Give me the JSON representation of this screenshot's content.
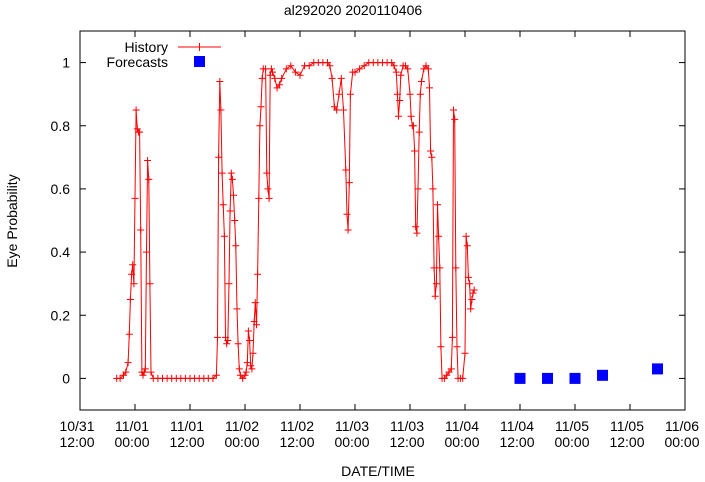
{
  "chart_data": {
    "type": "line",
    "title": "al292020 2020110406",
    "xlabel": "DATE/TIME",
    "ylabel": "Eye Probability",
    "xlim": [
      "2020-10-31T12:00",
      "2020-11-06T00:00"
    ],
    "ylim": [
      -0.1,
      1.1
    ],
    "x_ticks": [
      {
        "t": "2020-10-31T12:00",
        "l1": "10/31",
        "l2": "12:00"
      },
      {
        "t": "2020-11-01T00:00",
        "l1": "11/01",
        "l2": "00:00"
      },
      {
        "t": "2020-11-01T12:00",
        "l1": "11/01",
        "l2": "12:00"
      },
      {
        "t": "2020-11-02T00:00",
        "l1": "11/02",
        "l2": "00:00"
      },
      {
        "t": "2020-11-02T12:00",
        "l1": "11/02",
        "l2": "12:00"
      },
      {
        "t": "2020-11-03T00:00",
        "l1": "11/03",
        "l2": "00:00"
      },
      {
        "t": "2020-11-03T12:00",
        "l1": "11/03",
        "l2": "12:00"
      },
      {
        "t": "2020-11-04T00:00",
        "l1": "11/04",
        "l2": "00:00"
      },
      {
        "t": "2020-11-04T12:00",
        "l1": "11/04",
        "l2": "12:00"
      },
      {
        "t": "2020-11-05T00:00",
        "l1": "11/05",
        "l2": "00:00"
      },
      {
        "t": "2020-11-05T12:00",
        "l1": "11/05",
        "l2": "12:00"
      },
      {
        "t": "2020-11-06T00:00",
        "l1": "11/06",
        "l2": "00:00"
      }
    ],
    "y_ticks": [
      {
        "v": 0,
        "l": "0"
      },
      {
        "v": 0.2,
        "l": "0.2"
      },
      {
        "v": 0.4,
        "l": "0.4"
      },
      {
        "v": 0.6,
        "l": "0.6"
      },
      {
        "v": 0.8,
        "l": "0.8"
      },
      {
        "v": 1,
        "l": "1"
      }
    ],
    "legend_position": "top-left",
    "series": [
      {
        "name": "History",
        "color": "#ff0000",
        "style": "line-with-plus-markers",
        "points": [
          [
            "2020-10-31T20:00",
            0.0
          ],
          [
            "2020-10-31T20:45",
            0.0
          ],
          [
            "2020-10-31T21:30",
            0.01
          ],
          [
            "2020-10-31T22:00",
            0.02
          ],
          [
            "2020-10-31T22:30",
            0.05
          ],
          [
            "2020-10-31T22:45",
            0.14
          ],
          [
            "2020-10-31T23:00",
            0.25
          ],
          [
            "2020-10-31T23:15",
            0.33
          ],
          [
            "2020-10-31T23:30",
            0.36
          ],
          [
            "2020-10-31T23:45",
            0.3
          ],
          [
            "2020-11-01T00:00",
            0.57
          ],
          [
            "2020-11-01T00:15",
            0.85
          ],
          [
            "2020-11-01T00:30",
            0.79
          ],
          [
            "2020-11-01T00:45",
            0.78
          ],
          [
            "2020-11-01T01:00",
            0.78
          ],
          [
            "2020-11-01T01:15",
            0.47
          ],
          [
            "2020-11-01T01:30",
            0.02
          ],
          [
            "2020-11-01T01:45",
            0.01
          ],
          [
            "2020-11-01T02:00",
            0.02
          ],
          [
            "2020-11-01T02:15",
            0.03
          ],
          [
            "2020-11-01T02:30",
            0.4
          ],
          [
            "2020-11-01T02:45",
            0.69
          ],
          [
            "2020-11-01T03:00",
            0.63
          ],
          [
            "2020-11-01T03:15",
            0.3
          ],
          [
            "2020-11-01T03:30",
            0.02
          ],
          [
            "2020-11-01T04:00",
            0.0
          ],
          [
            "2020-11-01T05:00",
            0.0
          ],
          [
            "2020-11-01T06:00",
            0.0
          ],
          [
            "2020-11-01T07:00",
            0.0
          ],
          [
            "2020-11-01T08:00",
            0.0
          ],
          [
            "2020-11-01T09:00",
            0.0
          ],
          [
            "2020-11-01T10:00",
            0.0
          ],
          [
            "2020-11-01T11:00",
            0.0
          ],
          [
            "2020-11-01T12:00",
            0.0
          ],
          [
            "2020-11-01T13:00",
            0.0
          ],
          [
            "2020-11-01T14:00",
            0.0
          ],
          [
            "2020-11-01T15:00",
            0.0
          ],
          [
            "2020-11-01T16:00",
            0.0
          ],
          [
            "2020-11-01T17:00",
            0.0
          ],
          [
            "2020-11-01T17:45",
            0.01
          ],
          [
            "2020-11-01T18:00",
            0.13
          ],
          [
            "2020-11-01T18:15",
            0.7
          ],
          [
            "2020-11-01T18:30",
            0.94
          ],
          [
            "2020-11-01T18:45",
            0.85
          ],
          [
            "2020-11-01T19:00",
            0.65
          ],
          [
            "2020-11-01T19:15",
            0.55
          ],
          [
            "2020-11-01T19:30",
            0.45
          ],
          [
            "2020-11-01T19:45",
            0.13
          ],
          [
            "2020-11-01T20:00",
            0.11
          ],
          [
            "2020-11-01T20:15",
            0.12
          ],
          [
            "2020-11-01T20:30",
            0.3
          ],
          [
            "2020-11-01T20:45",
            0.53
          ],
          [
            "2020-11-01T21:00",
            0.65
          ],
          [
            "2020-11-01T21:15",
            0.63
          ],
          [
            "2020-11-01T21:30",
            0.58
          ],
          [
            "2020-11-01T21:45",
            0.5
          ],
          [
            "2020-11-01T22:00",
            0.42
          ],
          [
            "2020-11-01T22:15",
            0.22
          ],
          [
            "2020-11-01T22:30",
            0.11
          ],
          [
            "2020-11-01T22:45",
            0.03
          ],
          [
            "2020-11-01T23:00",
            0.01
          ],
          [
            "2020-11-01T23:30",
            0.0
          ],
          [
            "2020-11-02T00:00",
            0.01
          ],
          [
            "2020-11-02T00:15",
            0.02
          ],
          [
            "2020-11-02T00:30",
            0.05
          ],
          [
            "2020-11-02T00:45",
            0.15
          ],
          [
            "2020-11-02T01:00",
            0.12
          ],
          [
            "2020-11-02T01:15",
            0.04
          ],
          [
            "2020-11-02T01:30",
            0.03
          ],
          [
            "2020-11-02T01:45",
            0.08
          ],
          [
            "2020-11-02T02:00",
            0.18
          ],
          [
            "2020-11-02T02:15",
            0.24
          ],
          [
            "2020-11-02T02:30",
            0.17
          ],
          [
            "2020-11-02T02:45",
            0.33
          ],
          [
            "2020-11-02T03:00",
            0.57
          ],
          [
            "2020-11-02T03:15",
            0.8
          ],
          [
            "2020-11-02T03:30",
            0.86
          ],
          [
            "2020-11-02T03:45",
            0.95
          ],
          [
            "2020-11-02T04:00",
            0.98
          ],
          [
            "2020-11-02T04:30",
            0.98
          ],
          [
            "2020-11-02T04:45",
            0.65
          ],
          [
            "2020-11-02T05:00",
            0.6
          ],
          [
            "2020-11-02T05:15",
            0.57
          ],
          [
            "2020-11-02T05:30",
            0.96
          ],
          [
            "2020-11-02T05:45",
            0.98
          ],
          [
            "2020-11-02T06:00",
            0.97
          ],
          [
            "2020-11-02T06:30",
            0.95
          ],
          [
            "2020-11-02T07:00",
            0.92
          ],
          [
            "2020-11-02T07:30",
            0.93
          ],
          [
            "2020-11-02T08:00",
            0.95
          ],
          [
            "2020-11-02T09:00",
            0.98
          ],
          [
            "2020-11-02T10:00",
            0.99
          ],
          [
            "2020-11-02T11:00",
            0.97
          ],
          [
            "2020-11-02T12:00",
            0.96
          ],
          [
            "2020-11-02T13:00",
            0.99
          ],
          [
            "2020-11-02T14:00",
            0.99
          ],
          [
            "2020-11-02T15:00",
            1.0
          ],
          [
            "2020-11-02T16:00",
            1.0
          ],
          [
            "2020-11-02T17:00",
            1.0
          ],
          [
            "2020-11-02T18:00",
            1.0
          ],
          [
            "2020-11-02T18:30",
            0.99
          ],
          [
            "2020-11-02T19:00",
            0.95
          ],
          [
            "2020-11-02T19:30",
            0.86
          ],
          [
            "2020-11-02T20:00",
            0.85
          ],
          [
            "2020-11-02T20:30",
            0.9
          ],
          [
            "2020-11-02T21:00",
            0.95
          ],
          [
            "2020-11-02T21:30",
            0.85
          ],
          [
            "2020-11-02T22:00",
            0.66
          ],
          [
            "2020-11-02T22:15",
            0.52
          ],
          [
            "2020-11-02T22:30",
            0.47
          ],
          [
            "2020-11-02T22:45",
            0.62
          ],
          [
            "2020-11-02T23:00",
            0.9
          ],
          [
            "2020-11-02T23:30",
            0.97
          ],
          [
            "2020-11-03T00:00",
            0.97
          ],
          [
            "2020-11-03T01:00",
            0.98
          ],
          [
            "2020-11-03T02:00",
            0.99
          ],
          [
            "2020-11-03T03:00",
            1.0
          ],
          [
            "2020-11-03T04:00",
            1.0
          ],
          [
            "2020-11-03T05:00",
            1.0
          ],
          [
            "2020-11-03T06:00",
            1.0
          ],
          [
            "2020-11-03T07:00",
            1.0
          ],
          [
            "2020-11-03T08:00",
            1.0
          ],
          [
            "2020-11-03T08:30",
            0.99
          ],
          [
            "2020-11-03T09:00",
            0.97
          ],
          [
            "2020-11-03T09:15",
            0.9
          ],
          [
            "2020-11-03T09:30",
            0.83
          ],
          [
            "2020-11-03T09:45",
            0.88
          ],
          [
            "2020-11-03T10:00",
            0.96
          ],
          [
            "2020-11-03T10:30",
            0.99
          ],
          [
            "2020-11-03T11:00",
            0.99
          ],
          [
            "2020-11-03T11:30",
            0.98
          ],
          [
            "2020-11-03T12:00",
            0.9
          ],
          [
            "2020-11-03T12:15",
            0.83
          ],
          [
            "2020-11-03T12:30",
            0.8
          ],
          [
            "2020-11-03T12:45",
            0.8
          ],
          [
            "2020-11-03T13:00",
            0.72
          ],
          [
            "2020-11-03T13:15",
            0.48
          ],
          [
            "2020-11-03T13:30",
            0.46
          ],
          [
            "2020-11-03T13:45",
            0.6
          ],
          [
            "2020-11-03T14:00",
            0.78
          ],
          [
            "2020-11-03T14:15",
            0.9
          ],
          [
            "2020-11-03T14:30",
            0.94
          ],
          [
            "2020-11-03T15:00",
            0.98
          ],
          [
            "2020-11-03T15:30",
            0.99
          ],
          [
            "2020-11-03T16:00",
            0.98
          ],
          [
            "2020-11-03T16:15",
            0.92
          ],
          [
            "2020-11-03T16:30",
            0.72
          ],
          [
            "2020-11-03T16:45",
            0.7
          ],
          [
            "2020-11-03T17:00",
            0.6
          ],
          [
            "2020-11-03T17:15",
            0.35
          ],
          [
            "2020-11-03T17:30",
            0.26
          ],
          [
            "2020-11-03T17:45",
            0.3
          ],
          [
            "2020-11-03T18:00",
            0.55
          ],
          [
            "2020-11-03T18:15",
            0.45
          ],
          [
            "2020-11-03T18:30",
            0.35
          ],
          [
            "2020-11-03T18:45",
            0.1
          ],
          [
            "2020-11-03T19:00",
            0.0
          ],
          [
            "2020-11-03T19:30",
            0.0
          ],
          [
            "2020-11-03T20:00",
            0.01
          ],
          [
            "2020-11-03T20:30",
            0.02
          ],
          [
            "2020-11-03T21:00",
            0.03
          ],
          [
            "2020-11-03T21:15",
            0.13
          ],
          [
            "2020-11-03T21:30",
            0.85
          ],
          [
            "2020-11-03T21:45",
            0.82
          ],
          [
            "2020-11-03T22:00",
            0.35
          ],
          [
            "2020-11-03T22:15",
            0.1
          ],
          [
            "2020-11-03T22:30",
            0.0
          ],
          [
            "2020-11-03T23:00",
            0.0
          ],
          [
            "2020-11-03T23:30",
            0.0
          ],
          [
            "2020-11-04T00:00",
            0.08
          ],
          [
            "2020-11-04T00:15",
            0.45
          ],
          [
            "2020-11-04T00:30",
            0.42
          ],
          [
            "2020-11-04T00:45",
            0.32
          ],
          [
            "2020-11-04T01:00",
            0.3
          ],
          [
            "2020-11-04T01:15",
            0.22
          ],
          [
            "2020-11-04T01:30",
            0.25
          ],
          [
            "2020-11-04T01:45",
            0.27
          ],
          [
            "2020-11-04T02:00",
            0.28
          ]
        ]
      },
      {
        "name": "Forecasts",
        "color": "#0000ff",
        "style": "square-markers",
        "points": [
          [
            "2020-11-04T12:00",
            0.0
          ],
          [
            "2020-11-04T18:00",
            0.0
          ],
          [
            "2020-11-05T00:00",
            0.0
          ],
          [
            "2020-11-05T06:00",
            0.01
          ],
          [
            "2020-11-05T18:00",
            0.03
          ]
        ]
      }
    ]
  }
}
